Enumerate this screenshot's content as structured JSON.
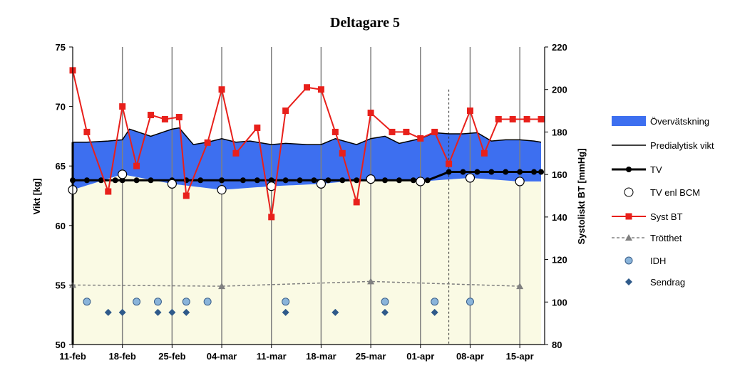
{
  "chart_data": {
    "type": "line",
    "title": "Deltagare 5",
    "ylabel": "Vikt [kg]",
    "y2label": "Systoliskt BT [mmHg]",
    "x_tick_labels": [
      "11-feb",
      "18-feb",
      "25-feb",
      "04-mar",
      "11-mar",
      "18-mar",
      "25-mar",
      "01-apr",
      "08-apr",
      "15-apr"
    ],
    "x_tick_days": [
      0,
      7,
      14,
      21,
      28,
      35,
      42,
      49,
      56,
      63
    ],
    "x_range_days": [
      0,
      66.5
    ],
    "ylim": [
      50,
      75
    ],
    "y_ticks": [
      50,
      55,
      60,
      65,
      70,
      75
    ],
    "y2lim": [
      80,
      220
    ],
    "y2_ticks": [
      80,
      100,
      120,
      140,
      160,
      180,
      200,
      220
    ],
    "vertical_grid": true,
    "reference_line_day": 53,
    "legend_position": "right",
    "series": [
      {
        "name": "Övervätskning",
        "kind": "band",
        "color": "#3d6ff0"
      },
      {
        "name": "Predialytisk vikt",
        "kind": "line",
        "color": "#000000",
        "x": [
          0,
          2,
          5,
          7,
          8,
          9,
          11,
          13,
          14,
          15,
          17,
          19,
          21,
          23,
          25,
          28,
          30,
          33,
          35,
          37,
          40,
          42,
          44,
          46,
          49,
          51,
          53,
          55,
          57,
          59,
          61,
          63,
          65,
          66
        ],
        "y": [
          67.0,
          67.0,
          67.1,
          67.2,
          68.1,
          67.9,
          67.5,
          67.9,
          68.1,
          68.2,
          66.8,
          67.0,
          67.3,
          67.0,
          67.1,
          66.8,
          66.9,
          66.8,
          66.8,
          67.3,
          66.8,
          67.3,
          67.5,
          66.9,
          67.3,
          67.8,
          67.7,
          67.7,
          67.8,
          67.1,
          67.2,
          67.2,
          67.1,
          67.0
        ]
      },
      {
        "name": "TV",
        "kind": "line-marker",
        "color": "#000000",
        "x": [
          0,
          2,
          4,
          6,
          7,
          9,
          11,
          14,
          16,
          18,
          21,
          24,
          26,
          28,
          30,
          32,
          34,
          36,
          38,
          40,
          42,
          44,
          46,
          48,
          50,
          53,
          55,
          57,
          59,
          61,
          63,
          65,
          66
        ],
        "y": [
          63.8,
          63.8,
          63.8,
          63.8,
          63.8,
          63.8,
          63.8,
          63.8,
          63.8,
          63.8,
          63.8,
          63.8,
          63.8,
          63.8,
          63.8,
          63.8,
          63.8,
          63.8,
          63.8,
          63.8,
          63.8,
          63.8,
          63.8,
          63.8,
          63.8,
          64.5,
          64.5,
          64.5,
          64.5,
          64.5,
          64.5,
          64.5,
          64.5
        ]
      },
      {
        "name": "TV enl BCM",
        "kind": "marker",
        "color": "#ffffff",
        "x": [
          0,
          7,
          14,
          21,
          28,
          35,
          42,
          49,
          56,
          63
        ],
        "y": [
          63.0,
          64.3,
          63.5,
          63.0,
          63.3,
          63.5,
          63.9,
          63.7,
          64.0,
          63.7
        ]
      },
      {
        "name": "Syst BT",
        "kind": "line-marker",
        "color": "#e8201b",
        "axis": "right",
        "x": [
          0,
          2,
          5,
          7,
          9,
          11,
          13,
          15,
          16,
          19,
          21,
          23,
          26,
          28,
          30,
          33,
          35,
          37,
          38,
          40,
          42,
          45,
          47,
          49,
          51,
          53,
          56,
          58,
          60,
          62,
          64,
          66
        ],
        "y": [
          209,
          180,
          152,
          192,
          164,
          188,
          186,
          187,
          150,
          175,
          200,
          170,
          182,
          140,
          190,
          201,
          200,
          180,
          170,
          147,
          189,
          180,
          180,
          177,
          180,
          165,
          190,
          170,
          186,
          186,
          186,
          186
        ]
      },
      {
        "name": "Trötthet",
        "kind": "line-marker",
        "color": "#808080",
        "x": [
          0,
          21,
          42,
          63
        ],
        "y": [
          55.0,
          54.9,
          55.3,
          54.9
        ]
      },
      {
        "name": "IDH",
        "kind": "marker",
        "color": "#8ab4da",
        "x": [
          2,
          9,
          12,
          16,
          19,
          30,
          44,
          51,
          56
        ],
        "y": [
          53.6,
          53.6,
          53.6,
          53.6,
          53.6,
          53.6,
          53.6,
          53.6,
          53.6
        ]
      },
      {
        "name": "Sendrag",
        "kind": "marker",
        "color": "#2f5a8a",
        "x": [
          5,
          7,
          12,
          14,
          16,
          30,
          37,
          44,
          51
        ],
        "y": [
          52.7,
          52.7,
          52.7,
          52.7,
          52.7,
          52.7,
          52.7,
          52.7,
          52.7
        ]
      }
    ]
  }
}
